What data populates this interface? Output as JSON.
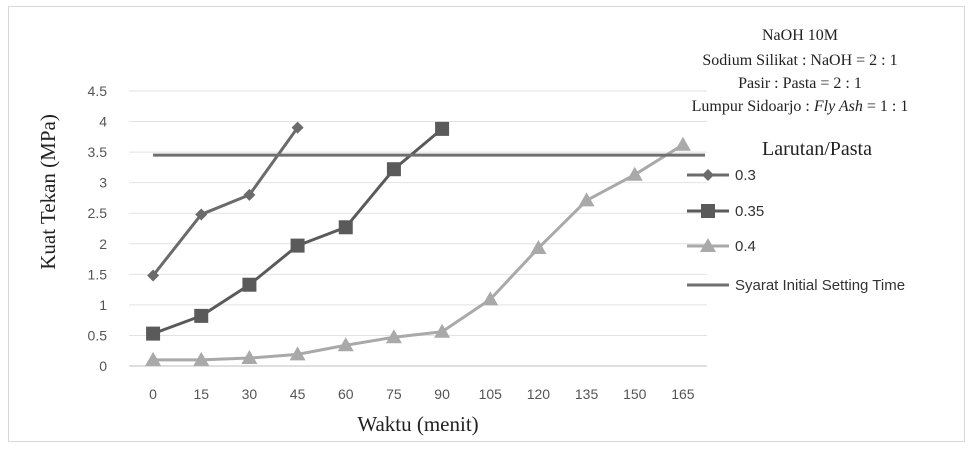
{
  "chart_data": {
    "type": "line",
    "annotations": [
      {
        "key": "naoh",
        "text": "NaOH 10M"
      },
      {
        "key": "ratio1",
        "text": "Sodium Silikat : NaOH = 2 : 1"
      },
      {
        "key": "ratio2",
        "text": "Pasir : Pasta = 2 : 1"
      },
      {
        "key": "ratio3a",
        "text": "Lumpur Sidoarjo : "
      },
      {
        "key": "ratio3b",
        "text": "Fly Ash"
      },
      {
        "key": "ratio3c",
        "text": " = 1 : 1"
      }
    ],
    "xlabel": "Waktu (menit)",
    "ylabel": "Kuat Tekan (MPa)",
    "legend_title": "Larutan/Pasta",
    "legend_position": "right",
    "grid": "horizontal",
    "x_categories": [
      0,
      15,
      30,
      45,
      60,
      75,
      90,
      105,
      120,
      135,
      150,
      165
    ],
    "x_tick_labels": [
      "0",
      "15",
      "30",
      "45",
      "60",
      "75",
      "90",
      "105",
      "120",
      "135",
      "150",
      "165"
    ],
    "ylim": [
      0,
      4.5
    ],
    "y_ticks": [
      0,
      0.5,
      1,
      1.5,
      2,
      2.5,
      3,
      3.5,
      4,
      4.5
    ],
    "y_tick_labels": [
      "0",
      "0.5",
      "1",
      "1.5",
      "2",
      "2.5",
      "3",
      "3.5",
      "4",
      "4.5"
    ],
    "series": [
      {
        "name": "0.3",
        "marker": "diamond",
        "color": "#6b6b6b",
        "x": [
          0,
          15,
          30,
          45
        ],
        "y": [
          1.48,
          2.48,
          2.8,
          3.9
        ]
      },
      {
        "name": "0.35",
        "marker": "square",
        "color": "#5a5a5a",
        "x": [
          0,
          15,
          30,
          45,
          60,
          75,
          90
        ],
        "y": [
          0.53,
          0.82,
          1.33,
          1.97,
          2.27,
          3.22,
          3.88
        ]
      },
      {
        "name": "0.4",
        "marker": "triangle",
        "color": "#a9a9a9",
        "x": [
          0,
          15,
          30,
          45,
          60,
          75,
          90,
          105,
          120,
          135,
          150,
          165
        ],
        "y": [
          0.1,
          0.1,
          0.13,
          0.19,
          0.34,
          0.47,
          0.56,
          1.09,
          1.93,
          2.71,
          3.13,
          3.62
        ]
      },
      {
        "name": "Syarat Initial Setting Time",
        "marker": "none",
        "color": "#6f6f6f",
        "x": [
          0,
          165
        ],
        "y": [
          3.45,
          3.45
        ]
      }
    ]
  }
}
